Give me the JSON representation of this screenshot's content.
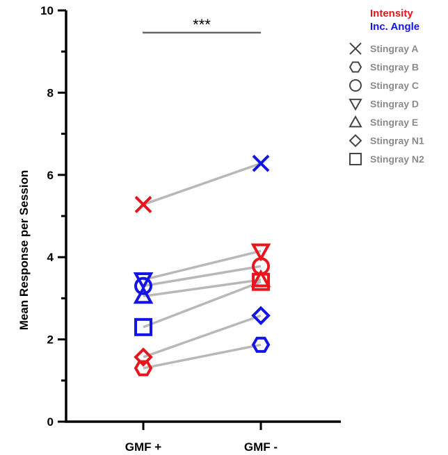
{
  "chart_data": {
    "type": "scatter",
    "ylabel": "Mean Response per Session",
    "xlabel": "",
    "categories": [
      "GMF +",
      "GMF -"
    ],
    "ylim": [
      0,
      10
    ],
    "y_ticks": [
      "0",
      "2",
      "4",
      "6",
      "8",
      "10"
    ],
    "significance": "***",
    "legend": {
      "color_key": [
        {
          "label": "Intensity",
          "color": "#e8141e"
        },
        {
          "label": "Inc. Angle",
          "color": "#1414e6"
        }
      ],
      "shape_key": [
        {
          "label": "Stingray A",
          "marker": "x-icon"
        },
        {
          "label": "Stingray B",
          "marker": "hexagon-icon"
        },
        {
          "label": "Stingray C",
          "marker": "circle-icon"
        },
        {
          "label": "Stingray D",
          "marker": "triangle-down-icon"
        },
        {
          "label": "Stingray E",
          "marker": "triangle-up-icon"
        },
        {
          "label": "Stingray N1",
          "marker": "diamond-icon"
        },
        {
          "label": "Stingray N2",
          "marker": "square-icon"
        }
      ]
    },
    "series": [
      {
        "marker": "x",
        "values": [
          5.28,
          6.28
        ],
        "colors": [
          "#e8141e",
          "#1414e6"
        ]
      },
      {
        "marker": "hexagon",
        "values": [
          1.3,
          1.87
        ],
        "colors": [
          "#e8141e",
          "#1414e6"
        ]
      },
      {
        "marker": "circle",
        "values": [
          3.3,
          3.78
        ],
        "colors": [
          "#1414e6",
          "#e8141e"
        ]
      },
      {
        "marker": "triangle-down",
        "values": [
          3.45,
          4.15
        ],
        "colors": [
          "#1414e6",
          "#e8141e"
        ]
      },
      {
        "marker": "triangle-up",
        "values": [
          3.05,
          3.45
        ],
        "colors": [
          "#1414e6",
          "#e8141e"
        ]
      },
      {
        "marker": "diamond",
        "values": [
          1.57,
          2.58
        ],
        "colors": [
          "#e8141e",
          "#1414e6"
        ]
      },
      {
        "marker": "square",
        "values": [
          2.3,
          3.4
        ],
        "colors": [
          "#1414e6",
          "#e8141e"
        ]
      }
    ],
    "connector_color": "#b8b8b8",
    "grid": false
  }
}
